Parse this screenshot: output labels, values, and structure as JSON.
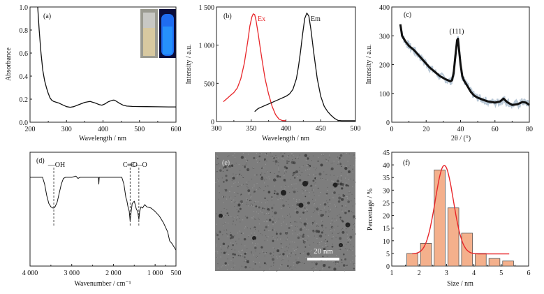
{
  "chart_data": [
    {
      "id": "a",
      "type": "line",
      "panel_label": "(a)",
      "xlabel": "Wavelength / nm",
      "ylabel": "Absorbance",
      "xlim": [
        200,
        600
      ],
      "ylim": [
        0,
        1.0
      ],
      "xticks": [
        200,
        300,
        400,
        500,
        600
      ],
      "xtick_labels": [
        "200",
        "300",
        "400",
        "500",
        "600"
      ],
      "yticks": [
        0,
        0.2,
        0.4,
        0.6,
        0.8,
        1.0
      ],
      "ytick_labels": [
        "0.0",
        "0.2",
        "0.4",
        "0.6",
        "0.8",
        "1.0"
      ],
      "inset": "photos of vial under daylight (pale yellow) and UV (blue fluorescence)",
      "series": [
        {
          "name": "Absorbance",
          "color": "#111111",
          "x": [
            221,
            225,
            230,
            235,
            240,
            245,
            250,
            255,
            260,
            265,
            270,
            280,
            290,
            300,
            310,
            320,
            330,
            340,
            350,
            360,
            365,
            370,
            380,
            390,
            397,
            405,
            415,
            425,
            430,
            435,
            445,
            455,
            465,
            480,
            500,
            520,
            550,
            580,
            600
          ],
          "y": [
            1.0,
            0.8,
            0.6,
            0.45,
            0.36,
            0.3,
            0.25,
            0.21,
            0.19,
            0.18,
            0.175,
            0.165,
            0.15,
            0.135,
            0.13,
            0.135,
            0.148,
            0.16,
            0.172,
            0.178,
            0.18,
            0.175,
            0.165,
            0.152,
            0.148,
            0.158,
            0.178,
            0.19,
            0.192,
            0.185,
            0.165,
            0.148,
            0.14,
            0.137,
            0.136,
            0.135,
            0.134,
            0.133,
            0.133
          ]
        }
      ]
    },
    {
      "id": "b",
      "type": "line",
      "panel_label": "(b)",
      "xlabel": "Wavelength / nm",
      "ylabel": "Intensity / a.u.",
      "xlim": [
        300,
        500
      ],
      "ylim": [
        0,
        1500
      ],
      "xticks": [
        300,
        350,
        400,
        450,
        500
      ],
      "xtick_labels": [
        "300",
        "350",
        "400",
        "450",
        "500"
      ],
      "yticks": [
        0,
        500,
        1000,
        1500
      ],
      "ytick_labels": [
        "0",
        "500",
        "1 000",
        "1 500"
      ],
      "series": [
        {
          "name": "Ex",
          "color": "#e8262a",
          "x": [
            310,
            315,
            320,
            325,
            330,
            335,
            340,
            345,
            348,
            351,
            353,
            355,
            357,
            360,
            363,
            366,
            370,
            375,
            380,
            385,
            390,
            395,
            400
          ],
          "y": [
            260,
            300,
            340,
            380,
            440,
            560,
            760,
            1050,
            1250,
            1370,
            1410,
            1400,
            1320,
            1150,
            960,
            780,
            560,
            360,
            200,
            90,
            30,
            12,
            10
          ]
        },
        {
          "name": "Em",
          "color": "#111111",
          "x": [
            355,
            360,
            365,
            370,
            380,
            390,
            400,
            405,
            410,
            415,
            418,
            421,
            424,
            427,
            430,
            433,
            436,
            440,
            445,
            450,
            455,
            460,
            465,
            470,
            475,
            480,
            490,
            500
          ],
          "y": [
            130,
            170,
            190,
            210,
            250,
            290,
            330,
            360,
            420,
            560,
            720,
            920,
            1150,
            1350,
            1420,
            1380,
            1200,
            900,
            560,
            330,
            200,
            130,
            80,
            40,
            15,
            10,
            10,
            10
          ]
        }
      ],
      "annotations": [
        {
          "text": "Ex",
          "color": "#e8262a"
        },
        {
          "text": "Em",
          "color": "#111111"
        }
      ]
    },
    {
      "id": "c",
      "type": "line",
      "panel_label": "(c)",
      "xlabel": "2θ / (°)",
      "ylabel": "Intensity / a.u.",
      "xlim": [
        0,
        80
      ],
      "ylim": [
        0,
        400
      ],
      "xticks": [
        0,
        20,
        40,
        60,
        80
      ],
      "xtick_labels": [
        "0",
        "20",
        "40",
        "60",
        "80"
      ],
      "yticks": [
        0,
        100,
        200,
        300,
        400
      ],
      "ytick_labels": [
        "0",
        "100",
        "200",
        "300",
        "400"
      ],
      "annotations": [
        {
          "text": "(111)",
          "x": 38.5,
          "y": 320
        }
      ],
      "series": [
        {
          "name": "XRD",
          "color": "#111111",
          "x": [
            5,
            6,
            8,
            10,
            13,
            16,
            19,
            22,
            25,
            28,
            31,
            34,
            35,
            36,
            37,
            38,
            38.5,
            39,
            40,
            41,
            42,
            44,
            46,
            48,
            50,
            53,
            56,
            60,
            63,
            65,
            67,
            70,
            73,
            76,
            78,
            80
          ],
          "y": [
            340,
            300,
            280,
            265,
            250,
            230,
            210,
            190,
            175,
            160,
            150,
            142,
            145,
            170,
            230,
            285,
            290,
            260,
            200,
            160,
            145,
            125,
            105,
            92,
            85,
            78,
            72,
            68,
            72,
            82,
            70,
            60,
            62,
            70,
            68,
            60
          ]
        }
      ]
    },
    {
      "id": "d",
      "type": "line",
      "panel_label": "(d)",
      "xlabel": "Wavenumber / cm⁻¹",
      "ylabel": "",
      "xlim": [
        4000,
        500
      ],
      "ylim": [
        0,
        1
      ],
      "xticks": [
        4000,
        3000,
        2000,
        1000,
        500
      ],
      "xtick_labels": [
        "4 000",
        "3 000",
        "2 000",
        "1 000",
        "500"
      ],
      "annotations": [
        {
          "text": "—OH",
          "x": 3430
        },
        {
          "text": "C═O",
          "x": 1600
        },
        {
          "text": "C—O",
          "x": 1390
        }
      ],
      "series": [
        {
          "name": "FTIR",
          "color": "#111111",
          "x": [
            4000,
            3700,
            3650,
            3600,
            3550,
            3500,
            3450,
            3430,
            3400,
            3350,
            3300,
            3250,
            3200,
            3150,
            3000,
            2900,
            2850,
            2800,
            2600,
            2360,
            2350,
            2340,
            2200,
            2000,
            1800,
            1750,
            1700,
            1680,
            1650,
            1620,
            1600,
            1580,
            1550,
            1500,
            1450,
            1420,
            1390,
            1370,
            1340,
            1300,
            1250,
            1200,
            1100,
            1000,
            900,
            800,
            700,
            650,
            600,
            550,
            500
          ],
          "y": [
            0.78,
            0.78,
            0.72,
            0.62,
            0.55,
            0.52,
            0.51,
            0.51,
            0.52,
            0.56,
            0.64,
            0.72,
            0.77,
            0.78,
            0.78,
            0.79,
            0.77,
            0.78,
            0.78,
            0.78,
            0.72,
            0.78,
            0.78,
            0.78,
            0.78,
            0.72,
            0.6,
            0.58,
            0.52,
            0.48,
            0.4,
            0.46,
            0.55,
            0.57,
            0.5,
            0.48,
            0.41,
            0.48,
            0.52,
            0.51,
            0.54,
            0.52,
            0.51,
            0.48,
            0.44,
            0.38,
            0.3,
            0.22,
            0.2,
            0.17,
            0.14
          ]
        }
      ]
    },
    {
      "id": "e",
      "type": "image",
      "panel_label": "(e)",
      "description": "TEM micrograph of dispersed nanoparticles",
      "scale_bar_label": "20 nm"
    },
    {
      "id": "f",
      "type": "bar",
      "panel_label": "(f)",
      "xlabel": "Size / nm",
      "ylabel": "Percentage / %",
      "xlim": [
        1,
        6
      ],
      "ylim": [
        0,
        45
      ],
      "xticks": [
        1,
        2,
        3,
        4,
        5,
        6
      ],
      "xtick_labels": [
        "1",
        "2",
        "3",
        "4",
        "5",
        "6"
      ],
      "yticks": [
        0,
        5,
        10,
        15,
        20,
        25,
        30,
        35,
        40,
        45
      ],
      "ytick_labels": [
        "0",
        "5",
        "10",
        "15",
        "20",
        "25",
        "30",
        "35",
        "40",
        "45"
      ],
      "bar_color": "#f4b08c",
      "fit_color": "#e8262a",
      "bins": [
        {
          "from": 1.55,
          "to": 1.95,
          "value": 5
        },
        {
          "from": 2.05,
          "to": 2.45,
          "value": 9
        },
        {
          "from": 2.55,
          "to": 2.95,
          "value": 38
        },
        {
          "from": 3.05,
          "to": 3.45,
          "value": 23
        },
        {
          "from": 3.55,
          "to": 3.95,
          "value": 13
        },
        {
          "from": 4.05,
          "to": 4.45,
          "value": 5
        },
        {
          "from": 4.55,
          "to": 4.95,
          "value": 3
        },
        {
          "from": 5.05,
          "to": 5.45,
          "value": 2
        }
      ],
      "fit": {
        "type": "gaussian",
        "center": 2.92,
        "amplitude": 35,
        "sigma": 0.33,
        "baseline": 4.8,
        "x_range": [
          1.75,
          5.3
        ]
      }
    }
  ]
}
